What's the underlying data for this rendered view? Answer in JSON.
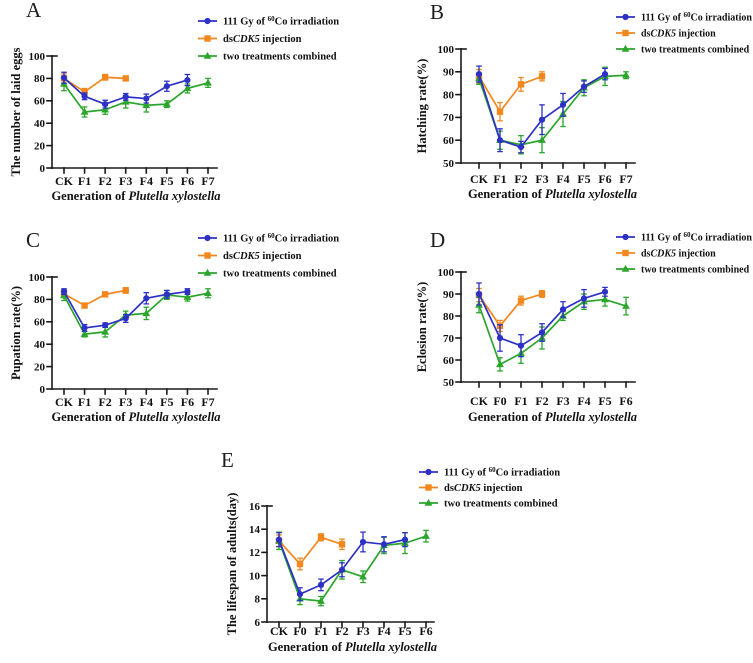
{
  "figure_label": "Five-panel line figure",
  "panels": {
    "a_label": "A",
    "b_label": "B",
    "c_label": "C",
    "d_label": "D",
    "e_label": "E"
  },
  "legend": {
    "entries": [
      {
        "name": "irradiation",
        "color": "#2D31C6",
        "marker": "circle",
        "text_pre": "111 Gy of ",
        "text_sup": "60",
        "text_post": "Co irradiation",
        "plain": "111 Gy of 60Co irradiation"
      },
      {
        "name": "dscdk5",
        "color": "#F2871E",
        "marker": "square",
        "text_pre": "ds",
        "text_italic": "CDK5",
        "text_post": " injection",
        "plain": "dsCDK5 injection"
      },
      {
        "name": "combined",
        "color": "#2BA52B",
        "marker": "triangle",
        "text_pre": "two treatments combined",
        "plain": "two treatments combined"
      }
    ]
  },
  "xaxis_title": {
    "prefix": "Generation of ",
    "italic": "Plutella xylostella"
  },
  "chart_data": [
    {
      "panel_label": "A",
      "type": "line",
      "ylabel": "The number of laid eggs",
      "ylim": [
        0,
        100
      ],
      "yticks": [
        0,
        20,
        40,
        60,
        80,
        100
      ],
      "categories": [
        "CK",
        "F1",
        "F2",
        "F3",
        "F4",
        "F5",
        "F6",
        "F7"
      ],
      "legend_position": "top-right",
      "grid": false,
      "series": [
        {
          "name": "111 Gy of 60Co irradiation",
          "values": [
            80.5,
            64,
            57,
            63.5,
            62,
            73,
            78.5,
            null
          ],
          "errors": [
            5,
            3,
            3.5,
            3,
            4,
            4.5,
            5,
            null
          ]
        },
        {
          "name": "dsCDK5 injection",
          "values": [
            80,
            68,
            81,
            80,
            null,
            null,
            null,
            null
          ],
          "errors": [
            4,
            3,
            2.5,
            2,
            null,
            null,
            null,
            null
          ]
        },
        {
          "name": "two treatments combined",
          "values": [
            75,
            50,
            52,
            59,
            56,
            57,
            71,
            76
          ],
          "errors": [
            6,
            4.5,
            4,
            5.5,
            6,
            3,
            4,
            4
          ]
        }
      ]
    },
    {
      "panel_label": "B",
      "type": "line",
      "ylabel": "Hatching rate(%)",
      "ylim": [
        50,
        100
      ],
      "yticks": [
        50,
        60,
        70,
        80,
        90,
        100
      ],
      "categories": [
        "CK",
        "F1",
        "F2",
        "F3",
        "F4",
        "F5",
        "F6",
        "F7"
      ],
      "legend_position": "top-right",
      "grid": false,
      "series": [
        {
          "name": "111 Gy of 60Co irradiation",
          "values": [
            89,
            60,
            57,
            69,
            75.5,
            83.5,
            89,
            null
          ],
          "errors": [
            3.5,
            5,
            2.5,
            6.5,
            5,
            2.5,
            2.5,
            null
          ]
        },
        {
          "name": "dsCDK5 injection",
          "values": [
            88,
            72.5,
            84.5,
            88,
            null,
            null,
            null,
            null
          ],
          "errors": [
            3,
            4,
            3,
            2,
            null,
            null,
            null,
            null
          ]
        },
        {
          "name": "two treatments combined",
          "values": [
            87,
            60,
            58,
            60,
            71.5,
            83,
            88,
            88.5
          ],
          "errors": [
            2.5,
            4,
            4,
            5.5,
            5.5,
            3.5,
            4,
            1.5
          ]
        }
      ]
    },
    {
      "panel_label": "C",
      "type": "line",
      "ylabel": "Pupation rate(%)",
      "ylim": [
        0,
        100
      ],
      "yticks": [
        0,
        20,
        40,
        60,
        80,
        100
      ],
      "categories": [
        "CK",
        "F1",
        "F2",
        "F3",
        "F4",
        "F5",
        "F6",
        "F7"
      ],
      "legend_position": "top-right",
      "grid": false,
      "series": [
        {
          "name": "111 Gy of 60Co irradiation",
          "values": [
            87,
            54.5,
            57,
            63,
            81,
            84.5,
            87,
            null
          ],
          "errors": [
            2.5,
            3,
            2,
            3.5,
            5,
            3.5,
            2.5,
            null
          ]
        },
        {
          "name": "dsCDK5 injection",
          "values": [
            85,
            74.5,
            84.5,
            88,
            null,
            null,
            null,
            null
          ],
          "errors": [
            3.5,
            2,
            2,
            2.5,
            null,
            null,
            null,
            null
          ]
        },
        {
          "name": "two treatments combined",
          "values": [
            83.5,
            49,
            51,
            66,
            67.5,
            84,
            82,
            85.5
          ],
          "errors": [
            4.5,
            2.5,
            4.5,
            3.5,
            5.5,
            4,
            3.5,
            4
          ]
        }
      ]
    },
    {
      "panel_label": "D",
      "type": "line",
      "ylabel": "Eclosion rate(%)",
      "ylim": [
        50,
        100
      ],
      "yticks": [
        50,
        60,
        70,
        80,
        90,
        100
      ],
      "categories": [
        "CK",
        "F0",
        "F1",
        "F2",
        "F3",
        "F4",
        "F5",
        "F6"
      ],
      "legend_position": "top-right",
      "grid": false,
      "series": [
        {
          "name": "111 Gy of 60Co irradiation",
          "values": [
            90,
            70,
            66.5,
            72.5,
            83,
            88,
            91,
            null
          ],
          "errors": [
            5,
            6,
            5,
            4,
            3.5,
            4,
            2,
            null
          ]
        },
        {
          "name": "dsCDK5 injection",
          "values": [
            89.5,
            75.5,
            87,
            90,
            null,
            null,
            null,
            null
          ],
          "errors": [
            3,
            2.5,
            2,
            1.5,
            null,
            null,
            null,
            null
          ]
        },
        {
          "name": "two treatments combined",
          "values": [
            85,
            58,
            63,
            70,
            80,
            86.5,
            87.5,
            84.5
          ],
          "errors": [
            3.5,
            3,
            4.5,
            5,
            2,
            3.5,
            3,
            4
          ]
        }
      ]
    },
    {
      "panel_label": "E",
      "type": "line",
      "ylabel": "The lifespan of adults(day)",
      "ylim": [
        6,
        16
      ],
      "yticks": [
        6,
        8,
        10,
        12,
        14,
        16
      ],
      "categories": [
        "CK",
        "F0",
        "F1",
        "F2",
        "F3",
        "F4",
        "F5",
        "F6"
      ],
      "legend_position": "top-right",
      "grid": false,
      "series": [
        {
          "name": "111 Gy of 60Co irradiation",
          "values": [
            13.1,
            8.4,
            9.2,
            10.5,
            12.9,
            12.7,
            13.1,
            null
          ],
          "errors": [
            0.6,
            0.55,
            0.5,
            0.6,
            0.85,
            0.65,
            0.6,
            null
          ]
        },
        {
          "name": "dsCDK5 injection",
          "values": [
            13,
            11,
            13.3,
            12.7,
            null,
            null,
            null,
            null
          ],
          "errors": [
            0.5,
            0.5,
            0.3,
            0.45,
            null,
            null,
            null,
            null
          ]
        },
        {
          "name": "two treatments combined",
          "values": [
            13,
            8,
            7.8,
            10.5,
            9.9,
            12.6,
            12.8,
            13.4
          ],
          "errors": [
            0.75,
            0.5,
            0.4,
            0.8,
            0.5,
            0.7,
            0.9,
            0.5
          ]
        }
      ]
    }
  ]
}
